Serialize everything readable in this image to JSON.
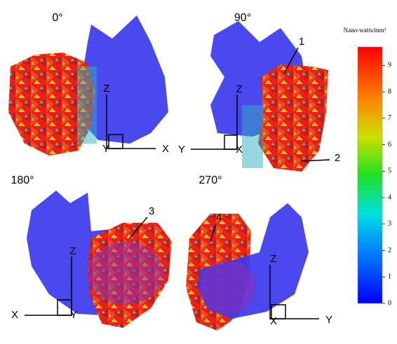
{
  "panels": [
    {
      "angle": "0°",
      "axes": [
        "Z",
        "Y",
        "X"
      ]
    },
    {
      "angle": "90°",
      "axes": [
        "Z",
        "Y",
        "X"
      ]
    },
    {
      "angle": "180°",
      "axes": [
        "Z",
        "X",
        "Y"
      ]
    },
    {
      "angle": "270°",
      "axes": [
        "Z",
        "X",
        "Y"
      ]
    }
  ],
  "annotations": [
    "1",
    "2",
    "3",
    "4"
  ],
  "colorbar": {
    "title": "Nano-watts/mm²",
    "lim": [
      0,
      9.7
    ],
    "ticks": [
      0,
      1,
      2,
      3,
      4,
      5,
      6,
      7,
      8,
      9
    ]
  }
}
